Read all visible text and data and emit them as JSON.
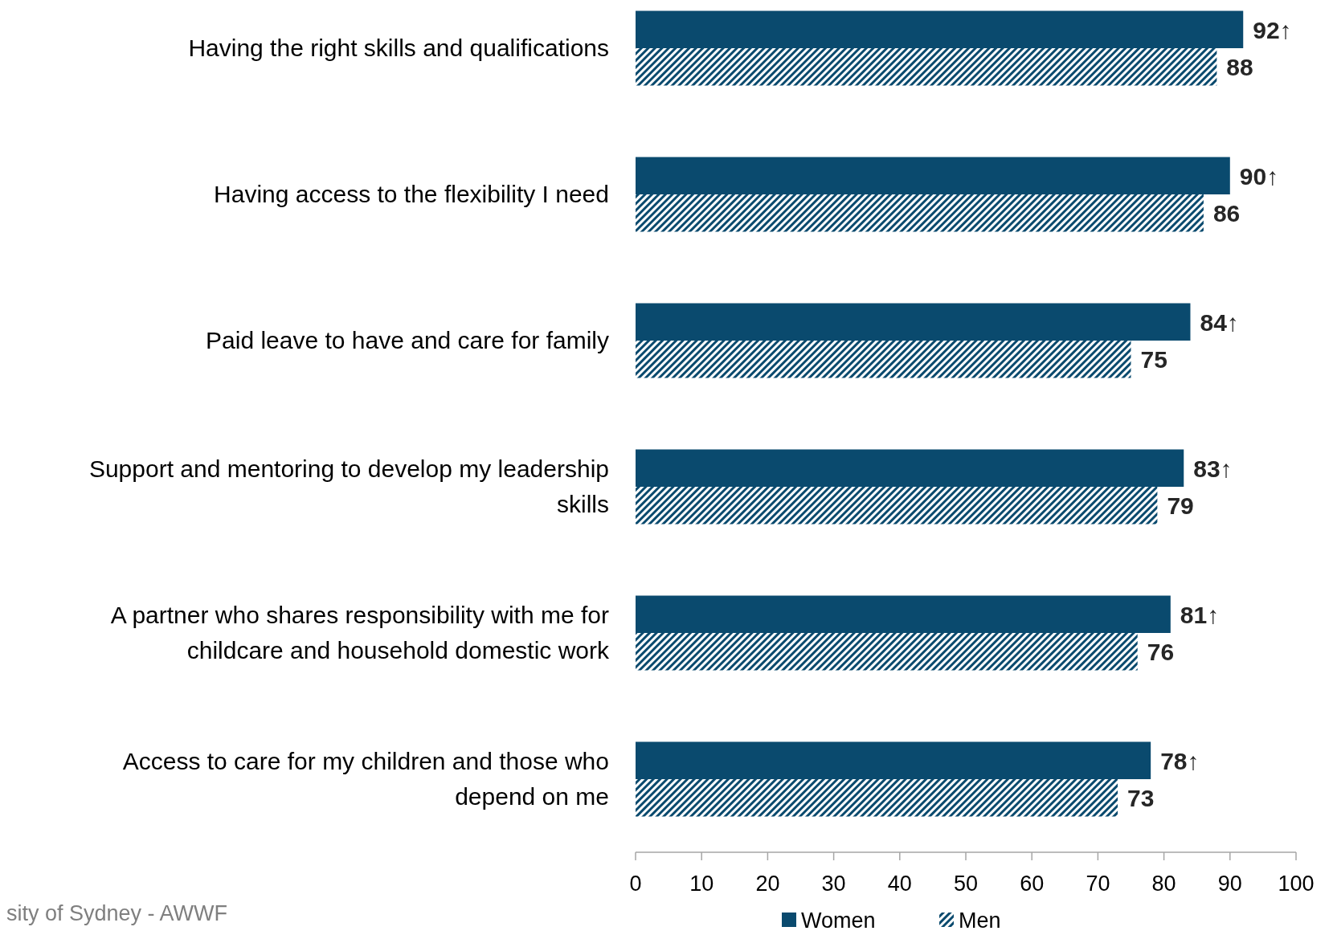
{
  "chart_data": {
    "type": "bar",
    "orientation": "horizontal",
    "categories": [
      "Having the right skills and qualifications",
      "Having access to the flexibility I need",
      "Paid leave to have and care for family",
      "Support and mentoring to develop my leadership skills",
      "A partner who shares responsibility with me for childcare and household domestic work",
      "Access to care for my children and those who depend on me"
    ],
    "series": [
      {
        "name": "Women",
        "color": "#0a4a6e",
        "values": [
          92,
          90,
          84,
          83,
          81,
          78
        ],
        "value_labels": [
          "92↑",
          "90↑",
          "84↑",
          "83↑",
          "81↑",
          "78↑"
        ]
      },
      {
        "name": "Men",
        "color": "#0a4a6e",
        "values": [
          88,
          86,
          75,
          79,
          76,
          73
        ],
        "value_labels": [
          "88",
          "86",
          "75",
          "79",
          "76",
          "73"
        ]
      }
    ],
    "xlim": [
      0,
      100
    ],
    "xticks": [
      0,
      10,
      20,
      30,
      40,
      50,
      60,
      70,
      80,
      90,
      100
    ],
    "grid": false,
    "legend": "bottom",
    "annotations": [
      "sity of Sydney - AWWF"
    ]
  }
}
